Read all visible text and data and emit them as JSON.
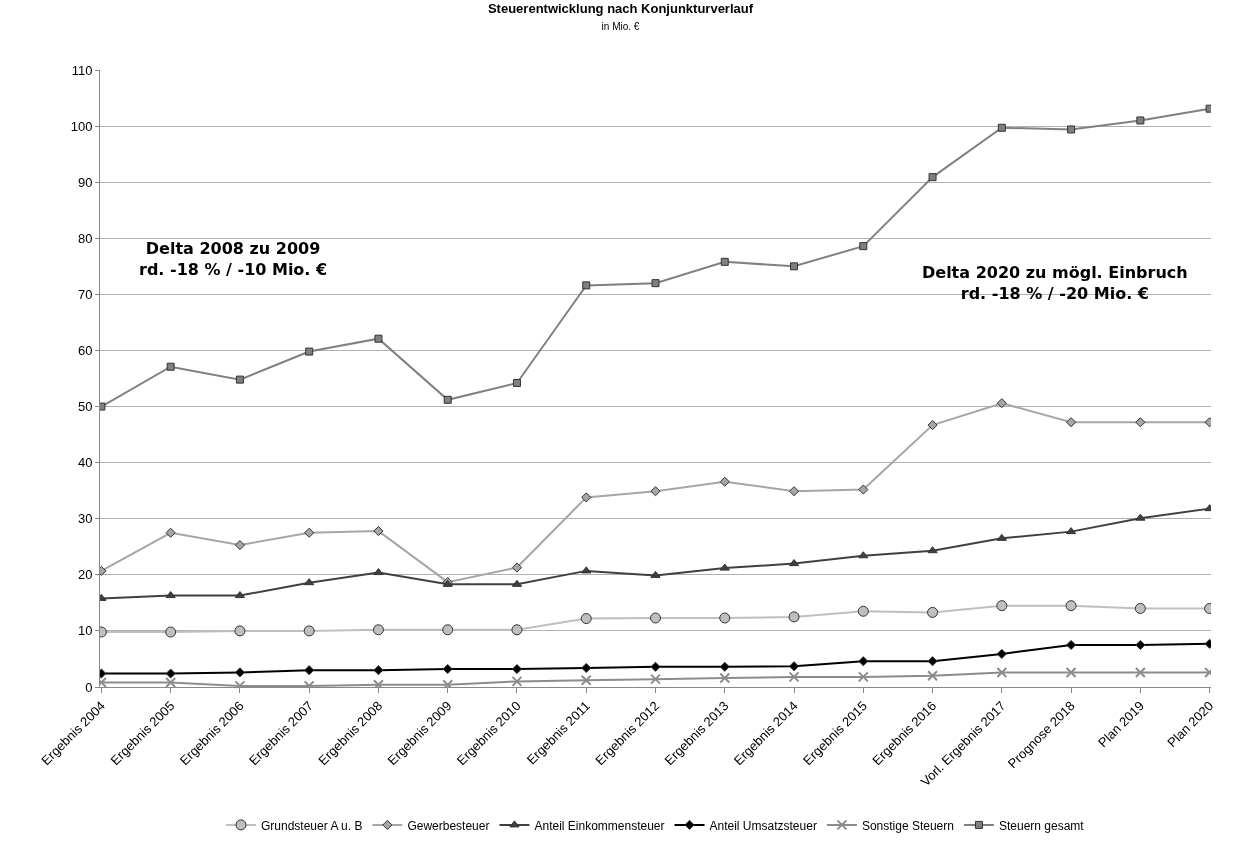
{
  "chart_data": {
    "type": "line",
    "title": "Steuerentwicklung nach Konjunkturverlauf",
    "subtitle": "in Mio. €",
    "categories": [
      "Ergebnis 2004",
      "Ergebnis 2005",
      "Ergebnis 2006",
      "Ergebnis 2007",
      "Ergebnis 2008",
      "Ergebnis 2009",
      "Ergebnis 2010",
      "Ergebnis 2011",
      "Ergebnis 2012",
      "Ergebnis 2013",
      "Ergebnis 2014",
      "Ergebnis 2015",
      "Ergebnis 2016",
      "Vorl. Ergebnis 2017",
      "Prognose 2018",
      "Plan 2019",
      "Plan 2020"
    ],
    "series": [
      {
        "name": "Grundsteuer A u. B",
        "color": "#bfbfbf",
        "marker": "circle",
        "values": [
          9.8,
          9.8,
          10,
          10,
          10.2,
          10.2,
          10.2,
          12.2,
          12.3,
          12.3,
          12.5,
          13.5,
          13.3,
          14.5,
          14.5,
          14,
          14
        ]
      },
      {
        "name": "Gewerbesteuer",
        "color": "#a6a6a6",
        "marker": "diamond",
        "values": [
          20.7,
          27.5,
          25.3,
          27.5,
          27.8,
          18.7,
          21.3,
          33.8,
          34.9,
          36.6,
          34.9,
          35.2,
          46.7,
          50.6,
          47.2,
          47.2,
          47.2
        ]
      },
      {
        "name": "Anteil Einkommensteuer",
        "color": "#404040",
        "marker": "triangle",
        "values": [
          15.8,
          16.3,
          16.3,
          18.6,
          20.4,
          18.3,
          18.3,
          20.7,
          19.9,
          21.2,
          22,
          23.4,
          24.3,
          26.5,
          27.7,
          30.1,
          31.8
        ]
      },
      {
        "name": "Anteil Umsatzsteuer",
        "color": "#000000",
        "marker": "diamond",
        "values": [
          2.4,
          2.4,
          2.6,
          3,
          3,
          3.2,
          3.2,
          3.4,
          3.6,
          3.6,
          3.7,
          4.6,
          4.6,
          5.9,
          7.5,
          7.5,
          7.7
        ]
      },
      {
        "name": "Sonstige Steuern",
        "color": "#8c8c8c",
        "marker": "cross",
        "values": [
          0.8,
          0.8,
          0.2,
          0.2,
          0.4,
          0.4,
          1,
          1.2,
          1.4,
          1.6,
          1.8,
          1.8,
          2,
          2.6,
          2.6,
          2.6,
          2.6
        ]
      },
      {
        "name": "Steuern gesamt",
        "color": "#808080",
        "marker": "square",
        "values": [
          50,
          57.1,
          54.8,
          59.8,
          62.1,
          51.2,
          54.2,
          71.6,
          72,
          75.8,
          75,
          78.6,
          90.9,
          99.7,
          99.4,
          101,
          103.1
        ]
      }
    ],
    "annotations": [
      "Delta 2008 zu 2009\nrd. -18 % / -10 Mio. €",
      "Delta 2020 zu mögl. Einbruch\nrd. -18 % / -20 Mio. €"
    ],
    "ylim": [
      0,
      110
    ],
    "yticks": [
      0,
      10,
      20,
      30,
      40,
      50,
      60,
      70,
      80,
      90,
      100,
      110
    ],
    "grid": "y",
    "legend": "bottom"
  }
}
